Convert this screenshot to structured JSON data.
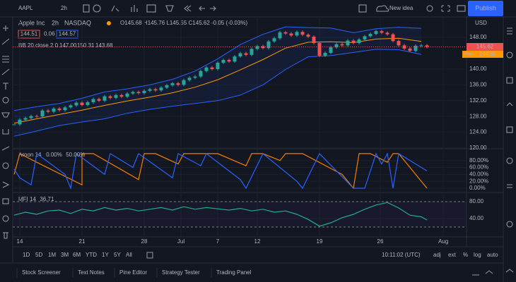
{
  "toolbar": {
    "symbol": "AAPL",
    "interval": "2h",
    "new_idea": "New idea",
    "publish": "Publish"
  },
  "legend": {
    "name": "Apple Inc",
    "interval": "2h",
    "exchange": "NASDAQ",
    "ohlc": "O145.68 H145.76 L145.55 C145.62 -0.05 (-0.03%)",
    "bid": "144.51",
    "spread": "0.06",
    "ask": "144.57",
    "bb": "BB 20 close 2 0",
    "bb_values": [
      "147.00",
      "150.31",
      "143.68"
    ]
  },
  "price_axis": {
    "currency": "USD",
    "last": "145.62",
    "prev_tag": "Prev",
    "prev": "144.50"
  },
  "chart_data": [
    {
      "type": "candlestick",
      "x": [
        0,
        1,
        2,
        3,
        4,
        5,
        6,
        7,
        8,
        9,
        10,
        11,
        12,
        13,
        14,
        15,
        16,
        17,
        18,
        19,
        20,
        21,
        22,
        23,
        24,
        25,
        26,
        27,
        28,
        29,
        30,
        31,
        32,
        33,
        34,
        35,
        36,
        37,
        38,
        39,
        40,
        41,
        42,
        43,
        44,
        45,
        46,
        47,
        48,
        49,
        50,
        51,
        52,
        53,
        54,
        55,
        56,
        57,
        58,
        59,
        60,
        61,
        62,
        63,
        64,
        65,
        66,
        67,
        68,
        69,
        70,
        71,
        72,
        73
      ],
      "values": [
        126.0,
        127.2,
        127.6,
        128.1,
        128.0,
        129.5,
        129.2,
        130.0,
        129.6,
        130.3,
        130.8,
        131.5,
        130.9,
        131.6,
        132.4,
        132.0,
        133.1,
        132.7,
        133.4,
        133.0,
        133.8,
        134.2,
        133.9,
        134.5,
        134.9,
        134.6,
        135.3,
        135.9,
        136.4,
        136.0,
        137.2,
        137.8,
        138.1,
        139.5,
        140.4,
        140.0,
        141.6,
        142.3,
        141.9,
        143.2,
        144.0,
        143.6,
        145.1,
        145.8,
        145.3,
        147.0,
        147.8,
        149.3,
        149.0,
        148.5,
        149.4,
        148.7,
        148.2,
        146.6,
        143.4,
        144.1,
        145.5,
        146.3,
        146.0,
        147.2,
        146.6,
        147.5,
        148.3,
        148.9,
        149.6,
        149.2,
        148.8,
        147.1,
        146.0,
        145.2,
        144.6,
        145.9,
        146.0,
        145.62
      ],
      "up_color": "#26a69a",
      "down_color": "#ef5350",
      "xlim": [
        0,
        80
      ],
      "xticks": [
        {
          "value": 1,
          "label": "14"
        },
        {
          "value": 12,
          "label": "21"
        },
        {
          "value": 23,
          "label": "28"
        },
        {
          "value": 29.5,
          "label": "Jul"
        },
        {
          "value": 36,
          "label": "7"
        },
        {
          "value": 43,
          "label": "12"
        },
        {
          "value": 54,
          "label": "19"
        },
        {
          "value": 64.75,
          "label": "26"
        },
        {
          "value": 75.9,
          "label": "Aug"
        }
      ],
      "ylim": [
        120,
        153.2
      ],
      "yticks": [
        {
          "value": 120,
          "label": "120.00"
        },
        {
          "value": 124,
          "label": "124.00"
        },
        {
          "value": 128,
          "label": "128.00"
        },
        {
          "value": 132,
          "label": "132.00"
        },
        {
          "value": 136,
          "label": "136.00"
        },
        {
          "value": 140,
          "label": "140.00"
        },
        {
          "value": 148,
          "label": "148.00"
        }
      ],
      "bands": {
        "x": [
          0,
          4,
          8,
          12,
          16,
          20,
          24,
          28,
          32,
          36,
          40,
          44,
          48,
          52,
          56,
          60,
          64,
          68,
          72
        ],
        "basis": [
          126.3,
          127.4,
          128.5,
          129.6,
          130.8,
          131.9,
          132.9,
          134.0,
          135.4,
          137.3,
          139.8,
          142.4,
          145.3,
          146.8,
          146.9,
          146.7,
          147.6,
          147.8,
          147.0
        ],
        "upper": [
          129.5,
          130.5,
          131.3,
          132.6,
          134.2,
          135.0,
          136.0,
          137.4,
          139.5,
          142.6,
          146.2,
          148.8,
          150.7,
          150.5,
          150.4,
          149.2,
          150.2,
          150.6,
          150.31
        ],
        "lower": [
          123.0,
          124.3,
          125.7,
          126.6,
          127.4,
          128.8,
          129.8,
          130.6,
          131.3,
          132.0,
          133.4,
          136.0,
          139.9,
          143.1,
          143.4,
          144.2,
          145.0,
          144.9,
          143.68
        ],
        "basis_color": "#ff9800",
        "band_color": "#2962ff"
      }
    },
    {
      "type": "line",
      "title": "Aroon 14",
      "ylim": [
        0,
        112
      ],
      "yticks": [
        {
          "value": 0,
          "label": "0.00%"
        },
        {
          "value": 20,
          "label": "20.00%"
        },
        {
          "value": 40,
          "label": "40.00%"
        },
        {
          "value": 60,
          "label": "60.00%"
        },
        {
          "value": 80,
          "label": "80.00%"
        }
      ],
      "series": [
        {
          "color": "#f57c00",
          "value_label": "0.00%",
          "x": [
            0,
            1,
            4,
            12,
            12,
            14,
            22,
            23,
            25,
            29,
            30,
            36,
            41,
            42,
            44,
            47,
            48,
            51,
            58,
            60,
            61,
            63,
            66,
            67,
            68,
            73
          ],
          "values": [
            40,
            100,
            75,
            10,
            100,
            100,
            25,
            100,
            100,
            70,
            100,
            100,
            65,
            100,
            100,
            80,
            100,
            100,
            40,
            0,
            100,
            100,
            75,
            100,
            100,
            0
          ]
        },
        {
          "color": "#2962ff",
          "value_label": "50.00%",
          "x": [
            0,
            1,
            3,
            4,
            9,
            10,
            11,
            16,
            17,
            21,
            22,
            28,
            29,
            33,
            34,
            40,
            41,
            44,
            50,
            51,
            54,
            60,
            62,
            64,
            65,
            66,
            67,
            68,
            73
          ],
          "values": [
            55,
            30,
            10,
            100,
            40,
            0,
            100,
            40,
            100,
            60,
            100,
            30,
            100,
            65,
            100,
            25,
            0,
            100,
            20,
            0,
            100,
            0,
            0,
            100,
            70,
            100,
            0,
            100,
            50
          ]
        }
      ]
    },
    {
      "type": "line",
      "title": "MFI 14",
      "ylim": [
        0,
        100
      ],
      "yticks": [
        {
          "value": 40,
          "label": "40.00"
        },
        {
          "value": 80,
          "label": "80.00"
        }
      ],
      "levels": [
        20,
        80
      ],
      "series": [
        {
          "color": "#22ab94",
          "value_label": "36.71",
          "x": [
            0,
            2,
            4,
            6,
            8,
            10,
            12,
            14,
            16,
            18,
            20,
            22,
            24,
            26,
            28,
            30,
            32,
            34,
            36,
            38,
            40,
            42,
            44,
            46,
            48,
            50,
            52,
            54,
            56,
            58,
            60,
            62,
            64,
            66,
            68,
            70,
            72,
            73
          ],
          "values": [
            48,
            55,
            50,
            58,
            60,
            52,
            62,
            58,
            66,
            60,
            64,
            58,
            62,
            66,
            60,
            68,
            62,
            66,
            63,
            60,
            64,
            58,
            62,
            55,
            58,
            50,
            38,
            22,
            30,
            42,
            50,
            62,
            72,
            78,
            65,
            48,
            44,
            36.71
          ]
        }
      ]
    }
  ],
  "range_bar": {
    "ranges": [
      "1D",
      "5D",
      "1M",
      "3M",
      "6M",
      "YTD",
      "1Y",
      "5Y",
      "All"
    ],
    "clock": "10:11:02 (UTC)",
    "options": [
      "adj",
      "ext",
      "%",
      "log",
      "auto"
    ]
  },
  "tabs": [
    "Stock Screener",
    "Text Notes",
    "Pine Editor",
    "Strategy Tester",
    "Trading Panel"
  ]
}
